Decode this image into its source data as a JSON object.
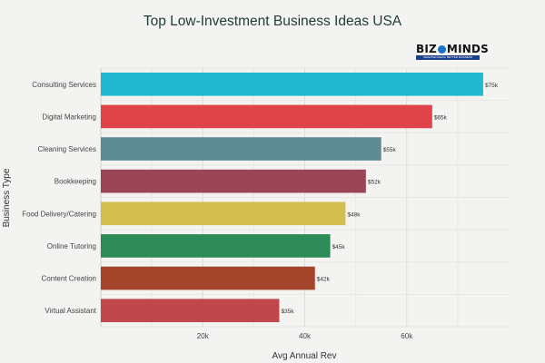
{
  "chart_data": {
    "type": "bar",
    "orientation": "horizontal",
    "title": "Top Low-Investment Business Ideas USA",
    "xlabel": "Avg Annual Rev",
    "ylabel": "Business Type",
    "xlim": [
      0,
      80000
    ],
    "xticks": [
      20000,
      40000,
      60000
    ],
    "xtick_labels": [
      "20k",
      "40k",
      "60k"
    ],
    "grid": true,
    "categories": [
      "Consulting Services",
      "Digital Marketing",
      "Cleaning Services",
      "Bookkeeping",
      "Food Delivery/Catering",
      "Online Tutoring",
      "Content Creation",
      "Virtual Assistant"
    ],
    "values": [
      75000,
      65000,
      55000,
      52000,
      48000,
      45000,
      42000,
      35000
    ],
    "value_labels": [
      "$75k",
      "$65k",
      "$55k",
      "$52k",
      "$48k",
      "$45k",
      "$42k",
      "$35k"
    ],
    "colors": [
      "#22b8cf",
      "#e0434a",
      "#5e8a94",
      "#9b4658",
      "#d4be4e",
      "#2e8b57",
      "#a3452a",
      "#c0474b"
    ]
  },
  "logo": {
    "text_left": "BIZ",
    "text_right": "MINDS",
    "tagline": "SMARTER IDEAS, BETTER BUSINESS"
  }
}
